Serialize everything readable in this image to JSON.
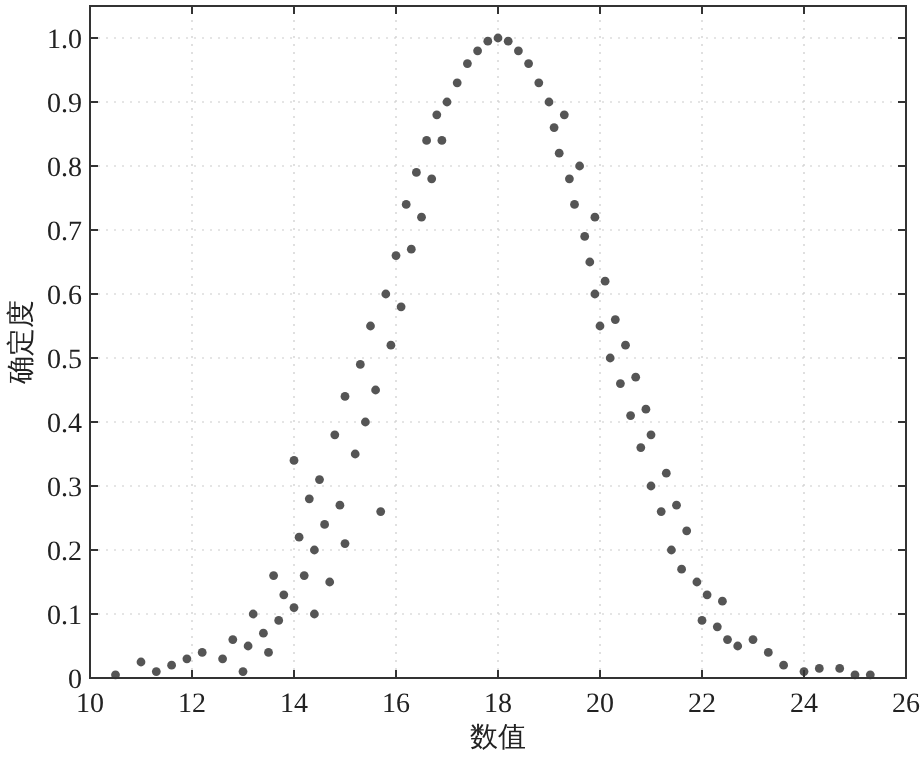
{
  "chart_data": {
    "type": "scatter",
    "xlabel": "数值",
    "ylabel": "确定度",
    "xlim": [
      10,
      26
    ],
    "xticks": [
      10,
      12,
      14,
      16,
      18,
      20,
      22,
      24,
      26
    ],
    "ylim": [
      0,
      1.05
    ],
    "yticks": [
      0,
      0.1,
      0.2,
      0.3,
      0.4,
      0.5,
      0.6,
      0.7,
      0.8,
      0.9,
      {
        "value": 1,
        "label": "1.0"
      }
    ],
    "grid": true,
    "marker": "circle",
    "series": [
      {
        "color": "#555555",
        "x": [
          10.5,
          11.0,
          11.3,
          11.6,
          11.9,
          12.2,
          12.6,
          12.8,
          13.0,
          13.1,
          13.2,
          13.4,
          13.5,
          13.6,
          13.7,
          13.8,
          14.0,
          14.0,
          14.1,
          14.2,
          14.3,
          14.4,
          14.4,
          14.5,
          14.6,
          14.7,
          14.8,
          14.9,
          15.0,
          15.0,
          15.2,
          15.3,
          15.4,
          15.5,
          15.6,
          15.7,
          15.8,
          15.9,
          16.0,
          16.1,
          16.2,
          16.3,
          16.4,
          16.5,
          16.6,
          16.7,
          16.8,
          16.9,
          17.0,
          17.2,
          17.4,
          17.6,
          17.8,
          18.0,
          18.2,
          18.4,
          18.6,
          18.8,
          19.0,
          19.1,
          19.2,
          19.3,
          19.4,
          19.5,
          19.6,
          19.7,
          19.8,
          19.9,
          19.9,
          20.0,
          20.1,
          20.2,
          20.3,
          20.4,
          20.5,
          20.6,
          20.7,
          20.8,
          20.9,
          21.0,
          21.0,
          21.2,
          21.3,
          21.4,
          21.5,
          21.6,
          21.7,
          21.9,
          22.0,
          22.1,
          22.3,
          22.4,
          22.5,
          22.7,
          23.0,
          23.3,
          23.6,
          24.0,
          24.3,
          24.7,
          25.0,
          25.3
        ],
        "values": [
          0.005,
          0.025,
          0.01,
          0.02,
          0.03,
          0.04,
          0.03,
          0.06,
          0.01,
          0.05,
          0.1,
          0.07,
          0.04,
          0.16,
          0.09,
          0.13,
          0.11,
          0.34,
          0.22,
          0.16,
          0.28,
          0.2,
          0.1,
          0.31,
          0.24,
          0.15,
          0.38,
          0.27,
          0.44,
          0.21,
          0.35,
          0.49,
          0.4,
          0.55,
          0.45,
          0.26,
          0.6,
          0.52,
          0.66,
          0.58,
          0.74,
          0.67,
          0.79,
          0.72,
          0.84,
          0.78,
          0.88,
          0.84,
          0.9,
          0.93,
          0.96,
          0.98,
          0.995,
          1.0,
          0.995,
          0.98,
          0.96,
          0.93,
          0.9,
          0.86,
          0.82,
          0.88,
          0.78,
          0.74,
          0.8,
          0.69,
          0.65,
          0.6,
          0.72,
          0.55,
          0.62,
          0.5,
          0.56,
          0.46,
          0.52,
          0.41,
          0.47,
          0.36,
          0.42,
          0.3,
          0.38,
          0.26,
          0.32,
          0.2,
          0.27,
          0.17,
          0.23,
          0.15,
          0.09,
          0.13,
          0.08,
          0.12,
          0.06,
          0.05,
          0.06,
          0.04,
          0.02,
          0.01,
          0.015,
          0.015,
          0.005,
          0.005
        ]
      }
    ]
  }
}
